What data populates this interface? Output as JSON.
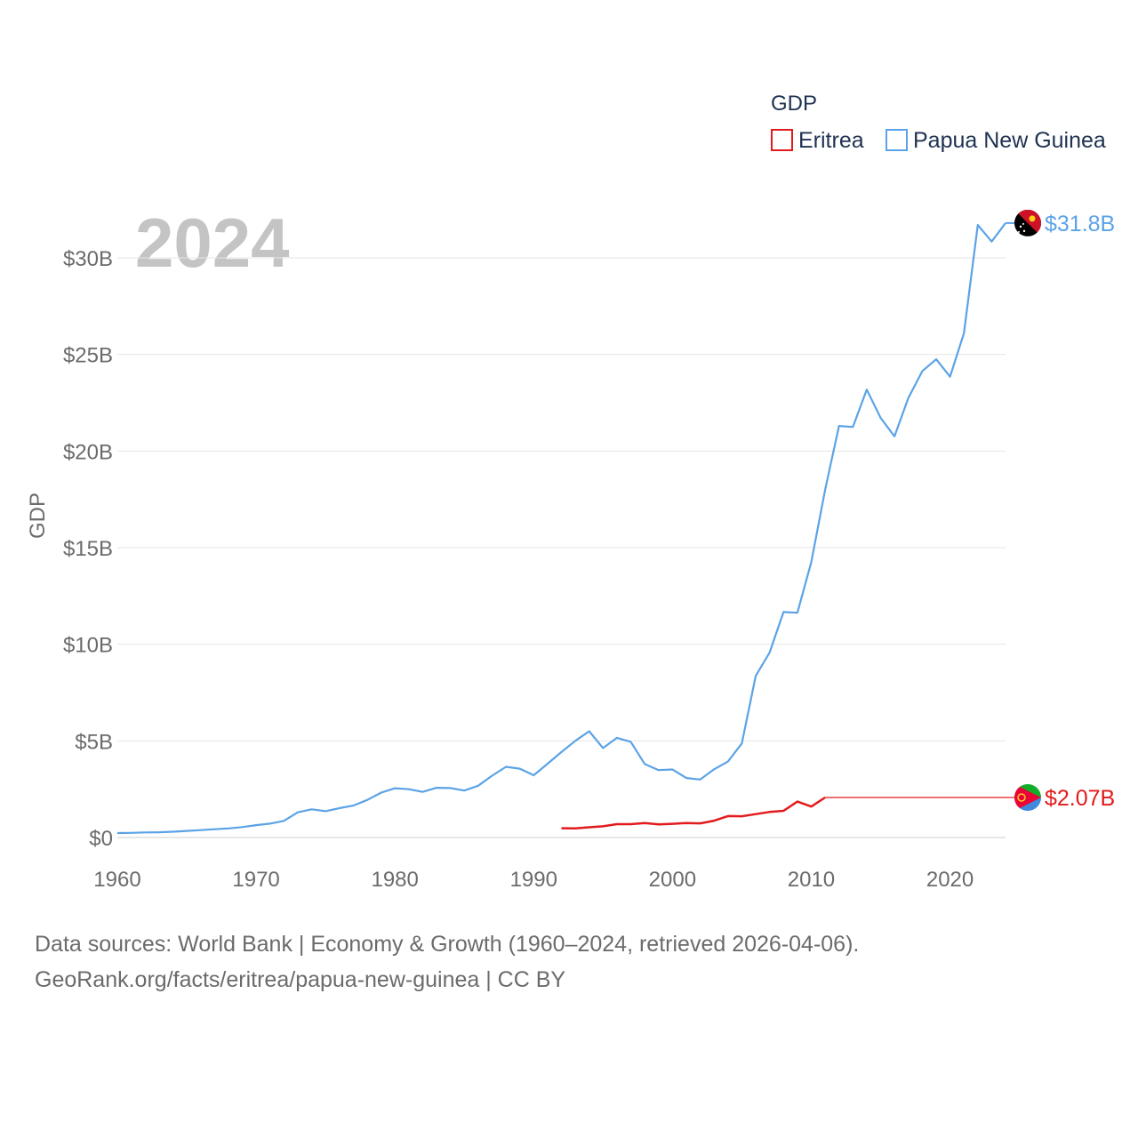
{
  "chart_data": {
    "type": "line",
    "title": "GDP",
    "ylabel": "GDP",
    "xlabel": "",
    "current_year": "2024",
    "xlim": [
      1960,
      2024
    ],
    "ylim": [
      0,
      32
    ],
    "x_ticks": [
      "1960",
      "1970",
      "1980",
      "1990",
      "2000",
      "2010",
      "2020"
    ],
    "y_ticks": [
      "$0",
      "$5B",
      "$10B",
      "$15B",
      "$20B",
      "$25B",
      "$30B"
    ],
    "grid": true,
    "legend_position": "top-right",
    "series": [
      {
        "name": "Eritrea",
        "color": "#e31a1c",
        "end_label": "$2.07B",
        "x": [
          1992,
          1993,
          1994,
          1995,
          1996,
          1997,
          1998,
          1999,
          2000,
          2001,
          2002,
          2003,
          2004,
          2005,
          2006,
          2007,
          2008,
          2009,
          2010,
          2011,
          2024
        ],
        "values": [
          0.48,
          0.47,
          0.53,
          0.58,
          0.69,
          0.69,
          0.75,
          0.68,
          0.71,
          0.75,
          0.73,
          0.87,
          1.11,
          1.1,
          1.21,
          1.32,
          1.38,
          1.86,
          1.6,
          2.07,
          2.07
        ]
      },
      {
        "name": "Papua New Guinea",
        "color": "#5ba3e6",
        "end_label": "$31.8B",
        "x": [
          1960,
          1961,
          1962,
          1963,
          1964,
          1965,
          1966,
          1967,
          1968,
          1969,
          1970,
          1971,
          1972,
          1973,
          1974,
          1975,
          1976,
          1977,
          1978,
          1979,
          1980,
          1981,
          1982,
          1983,
          1984,
          1985,
          1986,
          1987,
          1988,
          1989,
          1990,
          1991,
          1992,
          1993,
          1994,
          1995,
          1996,
          1997,
          1998,
          1999,
          2000,
          2001,
          2002,
          2003,
          2004,
          2005,
          2006,
          2007,
          2008,
          2009,
          2010,
          2011,
          2012,
          2013,
          2014,
          2015,
          2016,
          2017,
          2018,
          2019,
          2020,
          2021,
          2022,
          2023,
          2024
        ],
        "values": [
          0.23,
          0.24,
          0.26,
          0.27,
          0.3,
          0.34,
          0.38,
          0.43,
          0.47,
          0.54,
          0.64,
          0.72,
          0.86,
          1.3,
          1.46,
          1.36,
          1.52,
          1.65,
          1.94,
          2.32,
          2.55,
          2.5,
          2.36,
          2.57,
          2.56,
          2.43,
          2.68,
          3.2,
          3.66,
          3.56,
          3.22,
          3.82,
          4.42,
          5.0,
          5.5,
          4.63,
          5.16,
          4.95,
          3.8,
          3.49,
          3.52,
          3.08,
          3.0,
          3.53,
          3.93,
          4.87,
          8.36,
          9.57,
          11.67,
          11.63,
          14.25,
          18.0,
          21.3,
          21.25,
          23.18,
          21.72,
          20.76,
          22.75,
          24.13,
          24.75,
          23.85,
          26.1,
          31.7,
          30.84,
          31.8
        ]
      }
    ],
    "flags": {
      "eritrea": "eritrea-flag-icon",
      "png": "papua-new-guinea-flag-icon"
    }
  },
  "footer": {
    "line1": "Data sources: World Bank | Economy & Growth (1960–2024, retrieved 2026-04-06).",
    "line2": "GeoRank.org/facts/eritrea/papua-new-guinea | CC BY"
  }
}
